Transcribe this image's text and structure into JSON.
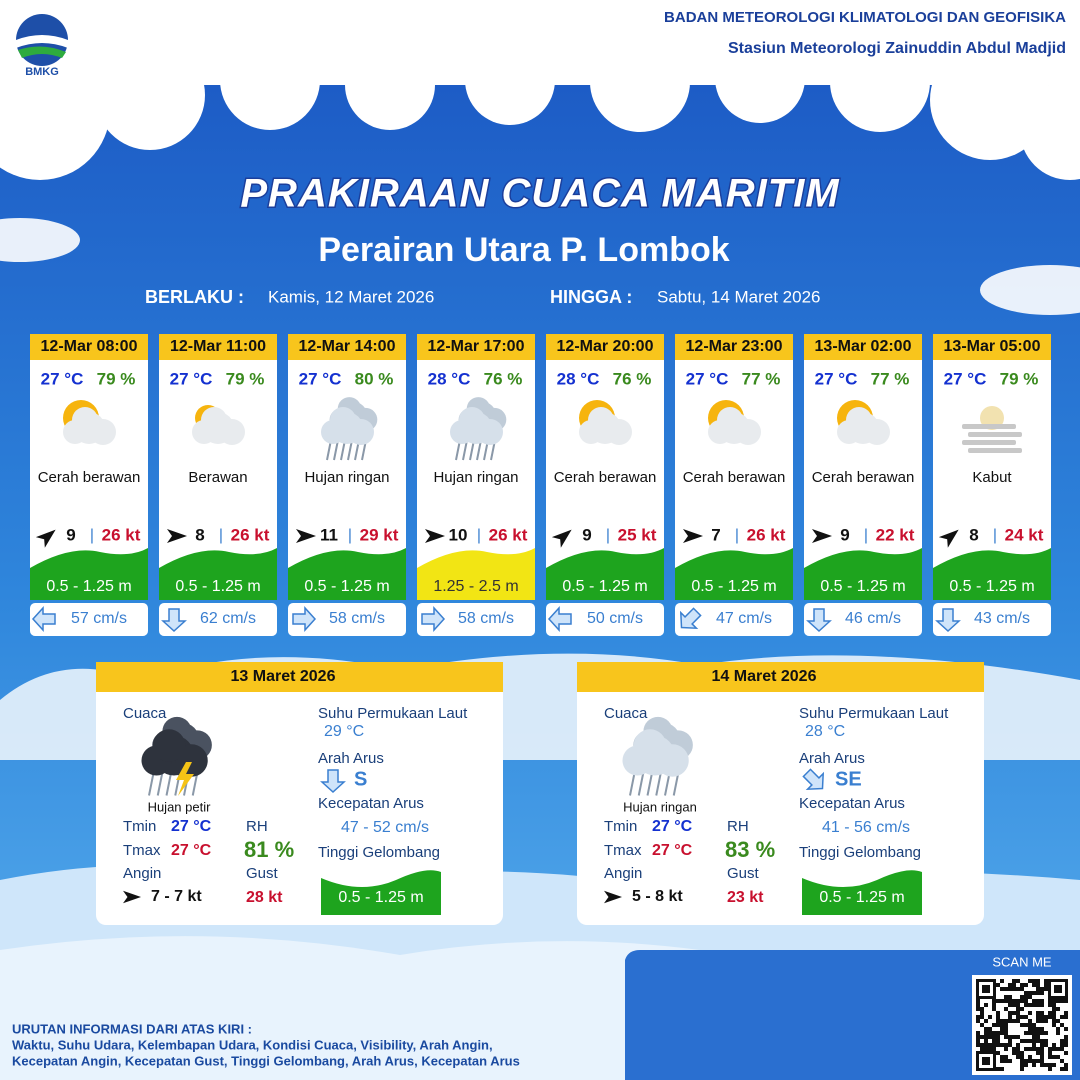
{
  "header": {
    "logo": "BMKG",
    "agency": "BADAN METEOROLOGI KLIMATOLOGI DAN GEOFISIKA",
    "station": "Stasiun Meteorologi Zainuddin Abdul Madjid"
  },
  "title": "PRAKIRAAN CUACA MARITIM",
  "subtitle": "Perairan Utara P. Lombok",
  "validity": {
    "from_label": "BERLAKU :",
    "from": "Kamis, 12 Maret 2026",
    "to_label": "HINGGA :",
    "to": "Sabtu, 14 Maret 2026"
  },
  "forecasts": [
    {
      "time": "12-Mar 08:00",
      "temp": "27 °C",
      "rh": "79 %",
      "condition": "Cerah berawan",
      "wind": "9",
      "gust": "26 kt",
      "wave": "0.5 - 1.25 m",
      "current": "57 cm/s"
    },
    {
      "time": "12-Mar 11:00",
      "temp": "27 °C",
      "rh": "79 %",
      "condition": "Berawan",
      "wind": "8",
      "gust": "26 kt",
      "wave": "0.5 - 1.25 m",
      "current": "62 cm/s"
    },
    {
      "time": "12-Mar 14:00",
      "temp": "27 °C",
      "rh": "80 %",
      "condition": "Hujan ringan",
      "wind": "11",
      "gust": "29 kt",
      "wave": "0.5 - 1.25 m",
      "current": "58 cm/s"
    },
    {
      "time": "12-Mar 17:00",
      "temp": "28 °C",
      "rh": "76 %",
      "condition": "Hujan ringan",
      "wind": "10",
      "gust": "26 kt",
      "wave": "1.25 - 2.5 m",
      "current": "58 cm/s"
    },
    {
      "time": "12-Mar 20:00",
      "temp": "28 °C",
      "rh": "76 %",
      "condition": "Cerah berawan",
      "wind": "9",
      "gust": "25 kt",
      "wave": "0.5 - 1.25 m",
      "current": "50 cm/s"
    },
    {
      "time": "12-Mar 23:00",
      "temp": "27 °C",
      "rh": "77 %",
      "condition": "Cerah berawan",
      "wind": "7",
      "gust": "26 kt",
      "wave": "0.5 - 1.25 m",
      "current": "47 cm/s"
    },
    {
      "time": "13-Mar 02:00",
      "temp": "27 °C",
      "rh": "77 %",
      "condition": "Cerah berawan",
      "wind": "9",
      "gust": "22 kt",
      "wave": "0.5 - 1.25 m",
      "current": "46 cm/s"
    },
    {
      "time": "13-Mar 05:00",
      "temp": "27 °C",
      "rh": "79 %",
      "condition": "Kabut",
      "wind": "8",
      "gust": "24 kt",
      "wave": "0.5 - 1.25 m",
      "current": "43 cm/s"
    }
  ],
  "daily": [
    {
      "date": "13 Maret 2026",
      "weather_label": "Cuaca",
      "condition": "Hujan petir",
      "tmin_label": "Tmin",
      "tmin": "27 °C",
      "tmax_label": "Tmax",
      "tmax": "27 °C",
      "wind_label": "Angin",
      "wind": "7 - 7 kt",
      "rh_label": "RH",
      "rh": "81 %",
      "gust_label": "Gust",
      "gust": "28 kt",
      "sst_label": "Suhu Permukaan Laut",
      "sst": "29 °C",
      "current_dir_label": "Arah Arus",
      "current_dir": "S",
      "current_speed_label": "Kecepatan Arus",
      "current_speed": "47 - 52 cm/s",
      "wave_label": "Tinggi Gelombang",
      "wave": "0.5 - 1.25 m"
    },
    {
      "date": "14 Maret 2026",
      "weather_label": "Cuaca",
      "condition": "Hujan ringan",
      "tmin_label": "Tmin",
      "tmin": "27 °C",
      "tmax_label": "Tmax",
      "tmax": "27 °C",
      "wind_label": "Angin",
      "wind": "5 - 8 kt",
      "rh_label": "RH",
      "rh": "83 %",
      "gust_label": "Gust",
      "gust": "23 kt",
      "sst_label": "Suhu Permukaan Laut",
      "sst": "28 °C",
      "current_dir_label": "Arah Arus",
      "current_dir": "SE",
      "current_speed_label": "Kecepatan Arus",
      "current_speed": "41 - 56 cm/s",
      "wave_label": "Tinggi Gelombang",
      "wave": "0.5 - 1.25 m"
    }
  ],
  "footer": {
    "scan": "SCAN ME",
    "legend_title": "URUTAN INFORMASI DARI ATAS KIRI :",
    "legend_lines": [
      "Waktu, Suhu Udara, Kelembapan Udara, Kondisi Cuaca, Visibility, Arah Angin,",
      "Kecepatan Angin, Kecepatan Gust, Tinggi Gelombang, Arah Arus, Kecepatan Arus"
    ]
  }
}
